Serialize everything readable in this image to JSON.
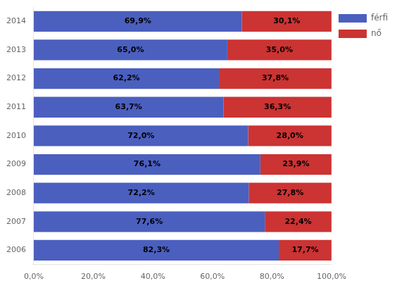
{
  "chart_data": {
    "type": "bar",
    "orientation": "horizontal",
    "stacked": true,
    "categories": [
      "2006",
      "2007",
      "2008",
      "2009",
      "2010",
      "2011",
      "2012",
      "2013",
      "2014"
    ],
    "series": [
      {
        "name": "férfi",
        "color": "#4B5FBF",
        "values": [
          82.3,
          77.6,
          72.2,
          76.1,
          72.0,
          63.7,
          62.2,
          65.0,
          69.9
        ],
        "value_labels": [
          "82,3%",
          "77,6%",
          "72,2%",
          "76,1%",
          "72,0%",
          "63,7%",
          "62,2%",
          "65,0%",
          "69,9%"
        ]
      },
      {
        "name": "nő",
        "color": "#CC3333",
        "values": [
          17.7,
          22.4,
          27.8,
          23.9,
          28.0,
          36.3,
          37.8,
          35.0,
          30.1
        ],
        "value_labels": [
          "17,7%",
          "22,4%",
          "27,8%",
          "23,9%",
          "28,0%",
          "36,3%",
          "37,8%",
          "35,0%",
          "30,1%"
        ]
      }
    ],
    "xlim": [
      0,
      100
    ],
    "xticks": [
      {
        "value": 0,
        "label": "0,0%"
      },
      {
        "value": 20,
        "label": "20,0%"
      },
      {
        "value": 40,
        "label": "40,0%"
      },
      {
        "value": 60,
        "label": "60,0%"
      },
      {
        "value": 80,
        "label": "80,0%"
      },
      {
        "value": 100,
        "label": "100,0%"
      }
    ],
    "grid": false,
    "legend": "upper right",
    "data_labels": true
  }
}
